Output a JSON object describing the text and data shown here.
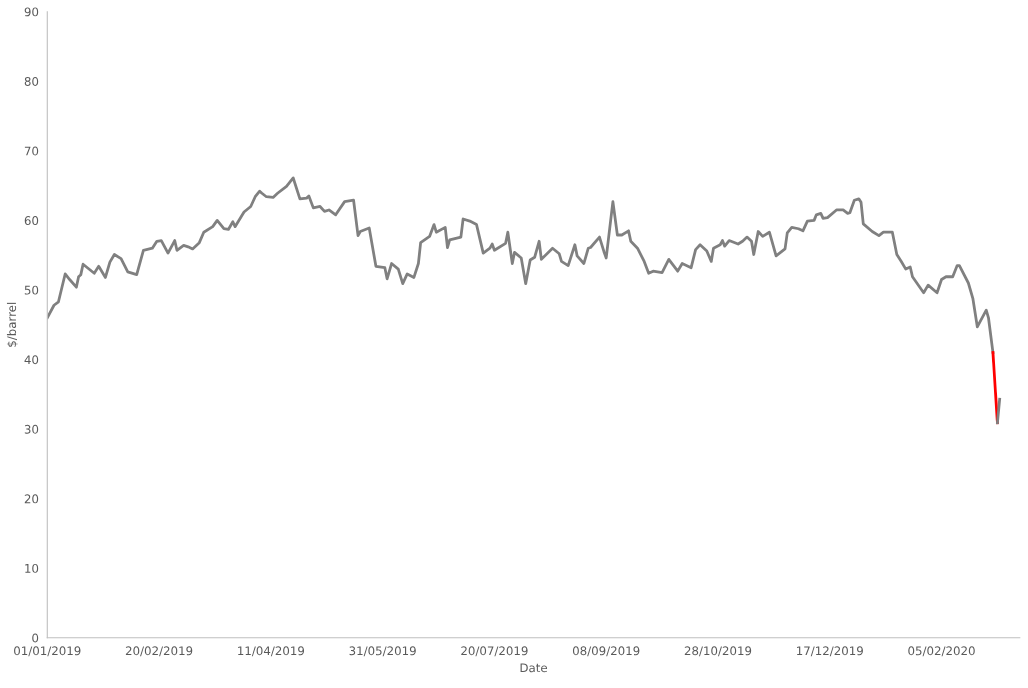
{
  "chart_data": {
    "type": "line",
    "xlabel": "Date",
    "ylabel": "$/barrel",
    "xlim": [
      "2019-01-01",
      "2020-03-11"
    ],
    "ylim": [
      0,
      90
    ],
    "xticks": [
      {
        "value": "2019-01-01",
        "label": "01/01/2019"
      },
      {
        "value": "2019-02-20",
        "label": "20/02/2019"
      },
      {
        "value": "2019-04-11",
        "label": "11/04/2019"
      },
      {
        "value": "2019-05-31",
        "label": "31/05/2019"
      },
      {
        "value": "2019-07-20",
        "label": "20/07/2019"
      },
      {
        "value": "2019-09-08",
        "label": "08/09/2019"
      },
      {
        "value": "2019-10-28",
        "label": "28/10/2019"
      },
      {
        "value": "2019-12-17",
        "label": "17/12/2019"
      },
      {
        "value": "2020-02-05",
        "label": "05/02/2020"
      }
    ],
    "yticks": [
      0,
      10,
      20,
      30,
      40,
      50,
      60,
      70,
      80,
      90
    ],
    "marker": "none",
    "line_style": "solid",
    "series": [
      {
        "color": "#808080",
        "x": [
          "2019-01-01",
          "2019-01-04",
          "2019-01-06",
          "2019-01-09",
          "2019-01-11",
          "2019-01-14",
          "2019-01-15",
          "2019-01-16",
          "2019-01-17",
          "2019-01-22",
          "2019-01-24",
          "2019-01-27",
          "2019-01-29",
          "2019-01-31",
          "2019-02-03",
          "2019-02-06",
          "2019-02-10",
          "2019-02-13",
          "2019-02-17",
          "2019-02-19",
          "2019-02-21",
          "2019-02-24",
          "2019-02-27",
          "2019-02-28",
          "2019-03-03",
          "2019-03-05",
          "2019-03-07",
          "2019-03-10",
          "2019-03-12",
          "2019-03-16",
          "2019-03-18",
          "2019-03-21",
          "2019-03-23",
          "2019-03-25",
          "2019-03-26",
          "2019-03-30",
          "2019-04-02",
          "2019-04-04",
          "2019-04-06",
          "2019-04-07",
          "2019-04-09",
          "2019-04-12",
          "2019-04-14",
          "2019-04-18",
          "2019-04-21",
          "2019-04-24",
          "2019-04-27",
          "2019-04-28",
          "2019-04-30",
          "2019-05-03",
          "2019-05-05",
          "2019-05-07",
          "2019-05-10",
          "2019-05-14",
          "2019-05-18",
          "2019-05-20",
          "2019-05-21",
          "2019-05-25",
          "2019-05-28",
          "2019-06-01",
          "2019-06-02",
          "2019-06-04",
          "2019-06-07",
          "2019-06-09",
          "2019-06-11",
          "2019-06-14",
          "2019-06-16",
          "2019-06-17",
          "2019-06-21",
          "2019-06-23",
          "2019-06-24",
          "2019-06-28",
          "2019-06-29",
          "2019-06-30",
          "2019-07-05",
          "2019-07-06",
          "2019-07-09",
          "2019-07-12",
          "2019-07-15",
          "2019-07-18",
          "2019-07-19",
          "2019-07-20",
          "2019-07-25",
          "2019-07-26",
          "2019-07-28",
          "2019-07-29",
          "2019-08-01",
          "2019-08-03",
          "2019-08-05",
          "2019-08-07",
          "2019-08-09",
          "2019-08-10",
          "2019-08-15",
          "2019-08-18",
          "2019-08-19",
          "2019-08-22",
          "2019-08-25",
          "2019-08-26",
          "2019-08-29",
          "2019-08-31",
          "2019-09-01",
          "2019-09-05",
          "2019-09-07",
          "2019-09-08",
          "2019-09-11",
          "2019-09-13",
          "2019-09-15",
          "2019-09-18",
          "2019-09-19",
          "2019-09-22",
          "2019-09-25",
          "2019-09-27",
          "2019-09-29",
          "2019-10-03",
          "2019-10-06",
          "2019-10-10",
          "2019-10-12",
          "2019-10-16",
          "2019-10-18",
          "2019-10-20",
          "2019-10-23",
          "2019-10-25",
          "2019-10-26",
          "2019-10-29",
          "2019-10-30",
          "2019-10-31",
          "2019-11-02",
          "2019-11-06",
          "2019-11-08",
          "2019-11-10",
          "2019-11-12",
          "2019-11-13",
          "2019-11-15",
          "2019-11-17",
          "2019-11-20",
          "2019-11-23",
          "2019-11-27",
          "2019-11-28",
          "2019-11-30",
          "2019-12-03",
          "2019-12-05",
          "2019-12-07",
          "2019-12-10",
          "2019-12-11",
          "2019-12-13",
          "2019-12-14",
          "2019-12-16",
          "2019-12-20",
          "2019-12-23",
          "2019-12-25",
          "2019-12-26",
          "2019-12-28",
          "2019-12-30",
          "2019-12-31",
          "2020-01-01",
          "2020-01-05",
          "2020-01-08",
          "2020-01-10",
          "2020-01-14",
          "2020-01-16",
          "2020-01-18",
          "2020-01-20",
          "2020-01-22",
          "2020-01-23",
          "2020-01-28",
          "2020-01-30",
          "2020-02-03",
          "2020-02-05",
          "2020-02-07",
          "2020-02-10",
          "2020-02-12",
          "2020-02-13",
          "2020-02-17",
          "2020-02-19",
          "2020-02-21",
          "2020-02-25",
          "2020-02-26",
          "2020-02-28"
        ],
        "values": [
          46.0,
          47.8,
          48.3,
          52.3,
          51.5,
          50.4,
          51.9,
          52.2,
          53.7,
          52.4,
          53.4,
          51.8,
          54.0,
          55.1,
          54.5,
          52.6,
          52.2,
          55.7,
          56.0,
          57.0,
          57.1,
          55.3,
          57.1,
          55.7,
          56.4,
          56.2,
          55.9,
          56.8,
          58.3,
          59.1,
          60.0,
          58.8,
          58.7,
          59.8,
          59.1,
          61.2,
          62.0,
          63.4,
          64.2,
          63.9,
          63.4,
          63.3,
          63.9,
          64.9,
          66.1,
          63.1,
          63.2,
          63.5,
          61.8,
          62.0,
          61.3,
          61.5,
          60.8,
          62.7,
          62.9,
          57.8,
          58.4,
          58.9,
          53.4,
          53.2,
          51.6,
          53.8,
          53.0,
          50.9,
          52.3,
          51.8,
          53.8,
          56.8,
          57.7,
          59.4,
          58.3,
          59.0,
          56.1,
          57.2,
          57.6,
          60.2,
          59.9,
          59.4,
          55.3,
          56.0,
          56.6,
          55.7,
          56.7,
          58.3,
          53.8,
          55.4,
          54.6,
          50.9,
          54.3,
          54.7,
          57.0,
          54.4,
          56.0,
          55.2,
          54.1,
          53.5,
          56.5,
          54.9,
          53.8,
          56.0,
          56.1,
          57.6,
          55.5,
          54.6,
          62.7,
          57.9,
          57.9,
          58.5,
          57.0,
          56.0,
          54.1,
          52.4,
          52.7,
          52.5,
          54.4,
          52.7,
          53.8,
          53.2,
          55.8,
          56.5,
          55.6,
          54.1,
          56.0,
          56.5,
          57.1,
          56.3,
          57.1,
          56.6,
          57.0,
          57.6,
          57.0,
          55.1,
          58.4,
          57.7,
          58.3,
          54.9,
          55.9,
          58.2,
          59.0,
          58.8,
          58.5,
          59.9,
          60.0,
          60.8,
          61.0,
          60.3,
          60.4,
          61.5,
          61.5,
          61.0,
          61.1,
          62.9,
          63.1,
          62.6,
          59.5,
          58.4,
          57.8,
          58.3,
          58.3,
          55.1,
          54.1,
          53.0,
          53.3,
          51.9,
          49.6,
          50.7,
          49.6,
          51.5,
          51.9,
          51.9,
          53.5,
          53.5,
          51.0,
          48.8,
          44.7,
          47.1,
          46.0,
          41.0
        ]
      },
      {
        "color": "#ff0000",
        "x": [
          "2020-02-28",
          "2020-03-01"
        ],
        "values": [
          41.0,
          30.9
        ]
      },
      {
        "color": "#808080",
        "x": [
          "2020-03-01",
          "2020-03-02"
        ],
        "values": [
          30.9,
          34.3
        ]
      }
    ]
  }
}
